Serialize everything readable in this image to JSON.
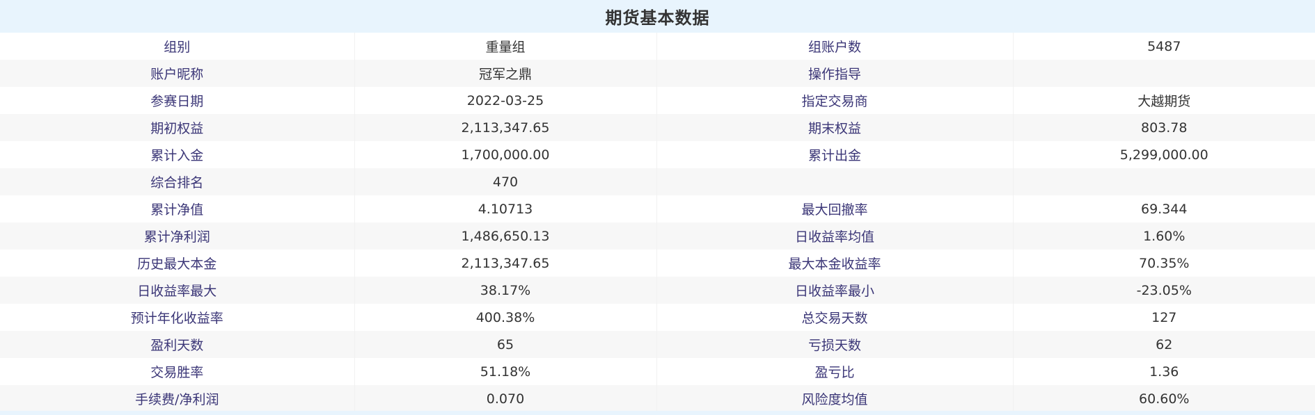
{
  "title": "期货基本数据",
  "rows": [
    [
      {
        "label": "组别",
        "value": "重量组"
      },
      {
        "label": "组账户数",
        "value": "5487"
      }
    ],
    [
      {
        "label": "账户昵称",
        "value": "冠军之鼎"
      },
      {
        "label": "操作指导",
        "value": ""
      }
    ],
    [
      {
        "label": "参赛日期",
        "value": "2022-03-25"
      },
      {
        "label": "指定交易商",
        "value": "大越期货"
      }
    ],
    [
      {
        "label": "期初权益",
        "value": "2,113,347.65"
      },
      {
        "label": "期末权益",
        "value": "803.78"
      }
    ],
    [
      {
        "label": "累计入金",
        "value": "1,700,000.00"
      },
      {
        "label": "累计出金",
        "value": "5,299,000.00"
      }
    ],
    [
      {
        "label": "综合排名",
        "value": "470"
      },
      {
        "label": "",
        "value": ""
      }
    ],
    [
      {
        "label": "累计净值",
        "value": "4.10713"
      },
      {
        "label": "最大回撤率",
        "value": "69.344"
      }
    ],
    [
      {
        "label": "累计净利润",
        "value": "1,486,650.13"
      },
      {
        "label": "日收益率均值",
        "value": "1.60%"
      }
    ],
    [
      {
        "label": "历史最大本金",
        "value": "2,113,347.65"
      },
      {
        "label": "最大本金收益率",
        "value": "70.35%"
      }
    ],
    [
      {
        "label": "日收益率最大",
        "value": "38.17%"
      },
      {
        "label": "日收益率最小",
        "value": "-23.05%"
      }
    ],
    [
      {
        "label": "预计年化收益率",
        "value": "400.38%"
      },
      {
        "label": "总交易天数",
        "value": "127"
      }
    ],
    [
      {
        "label": "盈利天数",
        "value": "65"
      },
      {
        "label": "亏损天数",
        "value": "62"
      }
    ],
    [
      {
        "label": "交易胜率",
        "value": "51.18%"
      },
      {
        "label": "盈亏比",
        "value": "1.36"
      }
    ],
    [
      {
        "label": "手续费/净利润",
        "value": "0.070"
      },
      {
        "label": "风险度均值",
        "value": "60.60%"
      }
    ]
  ]
}
